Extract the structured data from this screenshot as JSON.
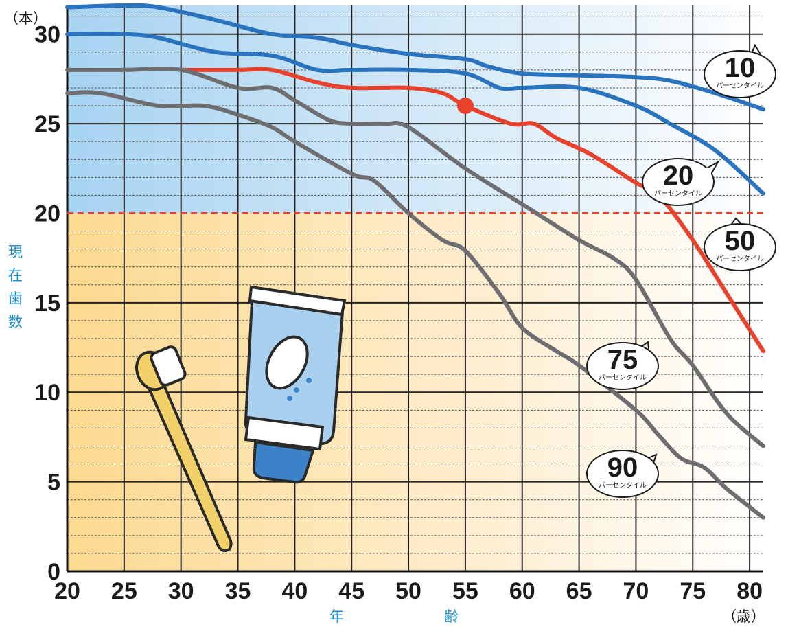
{
  "chart_data": {
    "type": "line",
    "y_unit": "（本）",
    "x_unit": "（歳）",
    "ylabel_chars": [
      "現",
      "在",
      "歯",
      "数"
    ],
    "xlabel_chars": [
      "年",
      "齢"
    ],
    "x_ticks": [
      20,
      25,
      30,
      35,
      40,
      45,
      50,
      55,
      60,
      65,
      70,
      75,
      80
    ],
    "y_ticks": [
      0,
      5,
      10,
      15,
      20,
      25,
      30
    ],
    "xlim": [
      20,
      81.2
    ],
    "ylim": [
      0,
      31.6
    ],
    "threshold_y": 20,
    "marker": {
      "x": 55,
      "y": 26
    },
    "colors": {
      "blue_series": "#2a73bf",
      "red_series": "#e8412c",
      "gray_series": "#6e6e70",
      "threshold": "#e8412c",
      "upper_bg": "#b9dcf3",
      "lower_bg": "#fde1a8"
    },
    "series": [
      {
        "key": "p10",
        "color": "blue",
        "x": [
          20,
          25,
          28,
          33,
          38,
          42,
          45,
          50,
          55,
          57,
          60,
          65,
          70,
          73,
          77,
          81.2
        ],
        "y": [
          31.5,
          31.6,
          31.5,
          30.8,
          30,
          29.8,
          29.4,
          28.9,
          28.6,
          28.2,
          27.8,
          27.7,
          27.6,
          27.4,
          26.7,
          25.8
        ]
      },
      {
        "key": "p20",
        "color": "blue",
        "x": [
          20,
          25,
          28,
          33,
          38,
          42,
          45,
          50,
          55,
          58,
          60,
          65,
          70,
          73,
          77,
          81.2
        ],
        "y": [
          30,
          30,
          29.8,
          29,
          28.8,
          28,
          28,
          28,
          27.8,
          27,
          27,
          27,
          26,
          25,
          23.5,
          21.1
        ]
      },
      {
        "key": "p50",
        "color": "red",
        "x": [
          30,
          35,
          38,
          42,
          45,
          50,
          53,
          55,
          59,
          61,
          63,
          66,
          70,
          72,
          75,
          78,
          81.2
        ],
        "y": [
          28,
          28,
          28,
          27.3,
          27,
          27,
          26.7,
          26,
          25,
          25,
          24.2,
          23.3,
          21.7,
          21,
          18.5,
          15.5,
          12.3
        ]
      },
      {
        "key": "p75",
        "color": "gray",
        "x": [
          20,
          25,
          30,
          35,
          38,
          40,
          43,
          45,
          48,
          50,
          55,
          60,
          65,
          68,
          70,
          73,
          75,
          78,
          81.2
        ],
        "y": [
          28,
          28,
          28,
          27,
          27,
          26.3,
          25.2,
          25,
          25,
          24.8,
          22.5,
          20.5,
          18.5,
          17.5,
          16.3,
          13,
          11.5,
          8.8,
          7
        ]
      },
      {
        "key": "p90",
        "color": "gray",
        "x": [
          20,
          23,
          28,
          32,
          35,
          38,
          40,
          45,
          47,
          50,
          53,
          55,
          58,
          60,
          63,
          65,
          70,
          72,
          74,
          76,
          78,
          81.2
        ],
        "y": [
          26.7,
          26.7,
          26,
          26,
          25.5,
          24.8,
          24,
          22.2,
          21.8,
          20,
          18.5,
          17.9,
          15.5,
          13.6,
          12.3,
          11.5,
          9,
          7.6,
          6.3,
          5.8,
          4.6,
          3
        ]
      }
    ],
    "callouts": [
      {
        "series": "p10",
        "number": "10",
        "sub": "パーセンタイル"
      },
      {
        "series": "p20",
        "number": "20",
        "sub": "パーセンタイル"
      },
      {
        "series": "p50",
        "number": "50",
        "sub": "パーセンタイル"
      },
      {
        "series": "p75",
        "number": "75",
        "sub": "パーセンタイル"
      },
      {
        "series": "p90",
        "number": "90",
        "sub": "パーセンタイル"
      }
    ]
  }
}
